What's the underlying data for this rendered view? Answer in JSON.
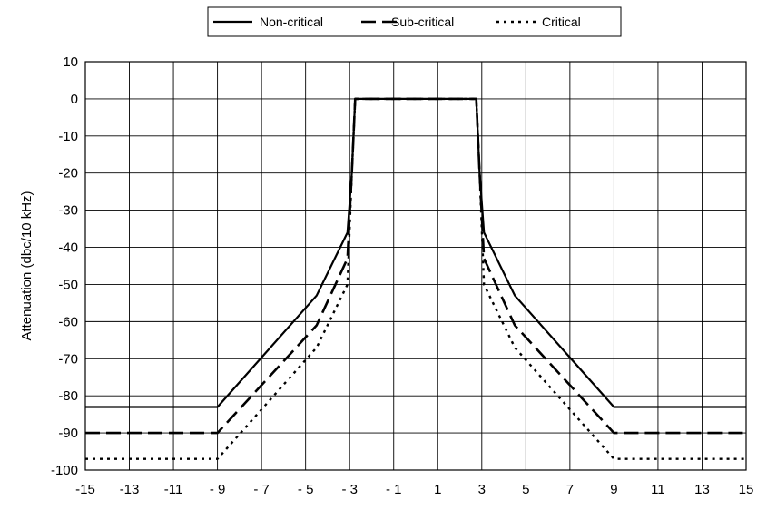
{
  "chart_data": {
    "type": "line",
    "title": "",
    "xlabel": "",
    "ylabel": "Attenuation (dbc/10 kHz)",
    "xlim": [
      -15,
      15
    ],
    "ylim": [
      -100,
      10
    ],
    "x_ticks": [
      -15,
      -13,
      -11,
      -9,
      -7,
      -5,
      -3,
      -1,
      1,
      3,
      5,
      7,
      9,
      11,
      13,
      15
    ],
    "x_tick_labels": [
      "-15",
      "-13",
      "-11",
      "- 9",
      "- 7",
      "- 5",
      "- 3",
      "- 1",
      "1",
      "3",
      "5",
      "7",
      "9",
      "11",
      "13",
      "15"
    ],
    "y_ticks": [
      10,
      0,
      -10,
      -20,
      -30,
      -40,
      -50,
      -60,
      -70,
      -80,
      -90,
      -100
    ],
    "y_tick_labels": [
      "10",
      "0",
      "-10",
      "-20",
      "-30",
      "-40",
      "-50",
      "-60",
      "-70",
      "-80",
      "-90",
      "-100"
    ],
    "grid": true,
    "legend_position": "top-center",
    "series": [
      {
        "name": "Non-critical",
        "dash": "solid",
        "color": "#000000",
        "points": [
          [
            -15,
            -83
          ],
          [
            -9,
            -83
          ],
          [
            -4.5,
            -53
          ],
          [
            -3.1,
            -36
          ],
          [
            -2.9,
            -20
          ],
          [
            -2.75,
            0
          ],
          [
            2.75,
            0
          ],
          [
            2.9,
            -20
          ],
          [
            3.1,
            -36
          ],
          [
            4.5,
            -53
          ],
          [
            9,
            -83
          ],
          [
            15,
            -83
          ]
        ]
      },
      {
        "name": "Sub-critical",
        "dash": "long-dash",
        "color": "#000000",
        "points": [
          [
            -15,
            -90
          ],
          [
            -9,
            -90
          ],
          [
            -4.5,
            -61
          ],
          [
            -3.1,
            -43
          ],
          [
            -2.9,
            -20
          ],
          [
            -2.75,
            0
          ],
          [
            2.75,
            0
          ],
          [
            2.9,
            -20
          ],
          [
            3.1,
            -43
          ],
          [
            4.5,
            -61
          ],
          [
            9,
            -90
          ],
          [
            15,
            -90
          ]
        ]
      },
      {
        "name": "Critical",
        "dash": "dotted",
        "color": "#000000",
        "points": [
          [
            -15,
            -97
          ],
          [
            -9,
            -97
          ],
          [
            -4.5,
            -67
          ],
          [
            -3.1,
            -50
          ],
          [
            -2.9,
            -20
          ],
          [
            -2.75,
            0
          ],
          [
            2.75,
            0
          ],
          [
            2.9,
            -20
          ],
          [
            3.1,
            -50
          ],
          [
            4.5,
            -67
          ],
          [
            9,
            -97
          ],
          [
            15,
            -97
          ]
        ]
      }
    ]
  }
}
